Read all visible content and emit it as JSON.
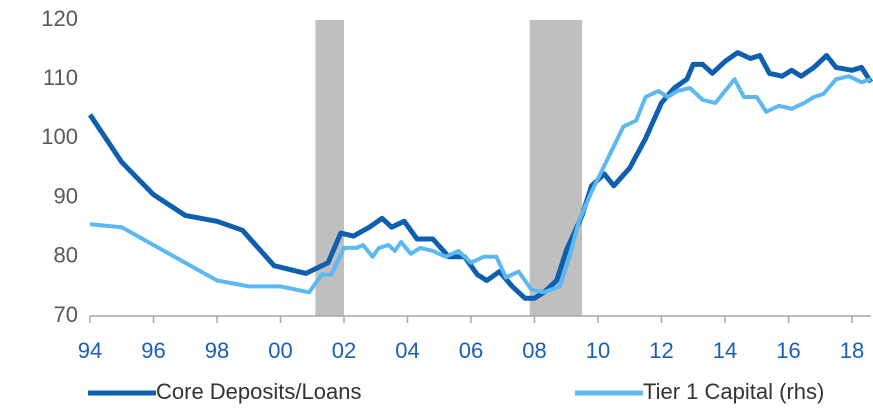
{
  "chart_data": {
    "type": "line",
    "xlim": [
      1994,
      2018.6
    ],
    "xticks": [
      {
        "value": 1994,
        "label": "94"
      },
      {
        "value": 1996,
        "label": "96"
      },
      {
        "value": 1998,
        "label": "98"
      },
      {
        "value": 2000,
        "label": "00"
      },
      {
        "value": 2002,
        "label": "02"
      },
      {
        "value": 2004,
        "label": "04"
      },
      {
        "value": 2006,
        "label": "06"
      },
      {
        "value": 2008,
        "label": "08"
      },
      {
        "value": 2010,
        "label": "10"
      },
      {
        "value": 2012,
        "label": "12"
      },
      {
        "value": 2014,
        "label": "14"
      },
      {
        "value": 2016,
        "label": "16"
      },
      {
        "value": 2018,
        "label": "18"
      }
    ],
    "ylim": [
      70,
      120
    ],
    "yticks": [
      70,
      80,
      90,
      100,
      110,
      120
    ],
    "grid": false,
    "shaded_periods": [
      [
        2001.1,
        2002.0
      ],
      [
        2007.85,
        2009.5
      ]
    ],
    "shade_color": "#bfbfbf",
    "series": [
      {
        "name": "Core Deposits/Loans",
        "color": "#0f5fb0",
        "x": [
          1994.0,
          1995.0,
          1996.0,
          1997.0,
          1998.0,
          1998.8,
          1999.8,
          2000.8,
          2001.5,
          2001.9,
          2002.3,
          2002.8,
          2003.2,
          2003.5,
          2003.9,
          2004.3,
          2004.8,
          2005.3,
          2005.8,
          2006.2,
          2006.5,
          2006.9,
          2007.3,
          2007.7,
          2008.0,
          2008.3,
          2008.7,
          2009.0,
          2009.5,
          2009.8,
          2010.2,
          2010.5,
          2011.0,
          2011.5,
          2012.0,
          2012.4,
          2012.8,
          2013.0,
          2013.3,
          2013.6,
          2014.0,
          2014.4,
          2014.8,
          2015.1,
          2015.4,
          2015.8,
          2016.1,
          2016.4,
          2016.8,
          2017.2,
          2017.5,
          2018.0,
          2018.3,
          2018.6
        ],
        "values": [
          104,
          96,
          90.5,
          87,
          86,
          84.5,
          78.5,
          77.2,
          79,
          84,
          83.5,
          85,
          86.5,
          85,
          86,
          83,
          83,
          80,
          80,
          77,
          76,
          77.5,
          75,
          73,
          73,
          74,
          76,
          81,
          87,
          92,
          94,
          92,
          95,
          100,
          106,
          108.5,
          110,
          112.5,
          112.5,
          111,
          113,
          114.5,
          113.5,
          114,
          111,
          110.5,
          111.5,
          110.5,
          112,
          114,
          112,
          111.5,
          112,
          109.5
        ]
      },
      {
        "name": "Tier 1 Capital (rhs)",
        "color": "#5bb8f0",
        "x": [
          1994.0,
          1995.0,
          1996.0,
          1997.0,
          1998.0,
          1999.0,
          2000.0,
          2000.9,
          2001.3,
          2001.6,
          2002.0,
          2002.4,
          2002.6,
          2002.9,
          2003.1,
          2003.4,
          2003.6,
          2003.8,
          2004.1,
          2004.4,
          2004.8,
          2005.2,
          2005.6,
          2006.0,
          2006.4,
          2006.8,
          2007.1,
          2007.5,
          2007.9,
          2008.3,
          2008.8,
          2009.1,
          2009.4,
          2009.8,
          2010.3,
          2010.8,
          2011.2,
          2011.5,
          2011.9,
          2012.2,
          2012.5,
          2012.9,
          2013.3,
          2013.7,
          2014.0,
          2014.3,
          2014.6,
          2015.0,
          2015.3,
          2015.7,
          2016.1,
          2016.5,
          2016.8,
          2017.1,
          2017.5,
          2017.9,
          2018.3,
          2018.6
        ],
        "values": [
          85.5,
          85,
          82,
          79,
          76,
          75,
          75,
          74,
          77,
          77,
          81.5,
          81.5,
          82,
          80,
          81.5,
          82,
          81,
          82.5,
          80.5,
          81.5,
          81,
          80,
          81,
          79,
          80,
          80,
          76.5,
          77.5,
          74.5,
          74,
          75,
          80,
          86,
          91,
          96.5,
          102,
          103,
          107,
          108,
          107,
          108,
          108.5,
          106.5,
          106,
          108,
          110,
          107,
          107,
          104.5,
          105.5,
          105,
          106,
          107,
          107.5,
          110,
          110.5,
          109.5,
          110
        ]
      }
    ]
  }
}
